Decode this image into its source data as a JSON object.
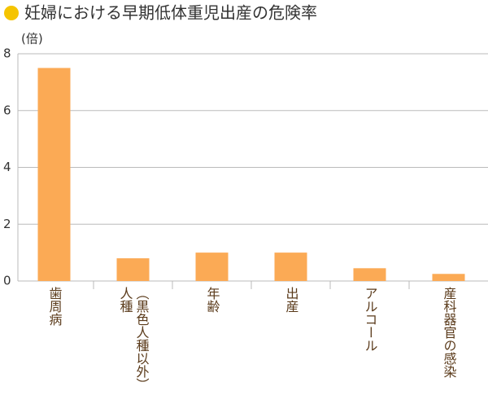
{
  "chart_data": {
    "type": "bar",
    "title": "妊婦における早期低体重児出産の危険率",
    "y_unit": "(倍)",
    "categories": [
      "歯周病",
      "人種（黒色人種以外）",
      "年齢",
      "出産",
      "アルコール",
      "産科器官の感染"
    ],
    "values": [
      7.5,
      0.8,
      1.0,
      1.0,
      0.45,
      0.25
    ],
    "color": "#fbaa55",
    "ylim": [
      0,
      8
    ],
    "yticks": [
      0,
      2,
      4,
      6,
      8
    ],
    "grid": true
  }
}
